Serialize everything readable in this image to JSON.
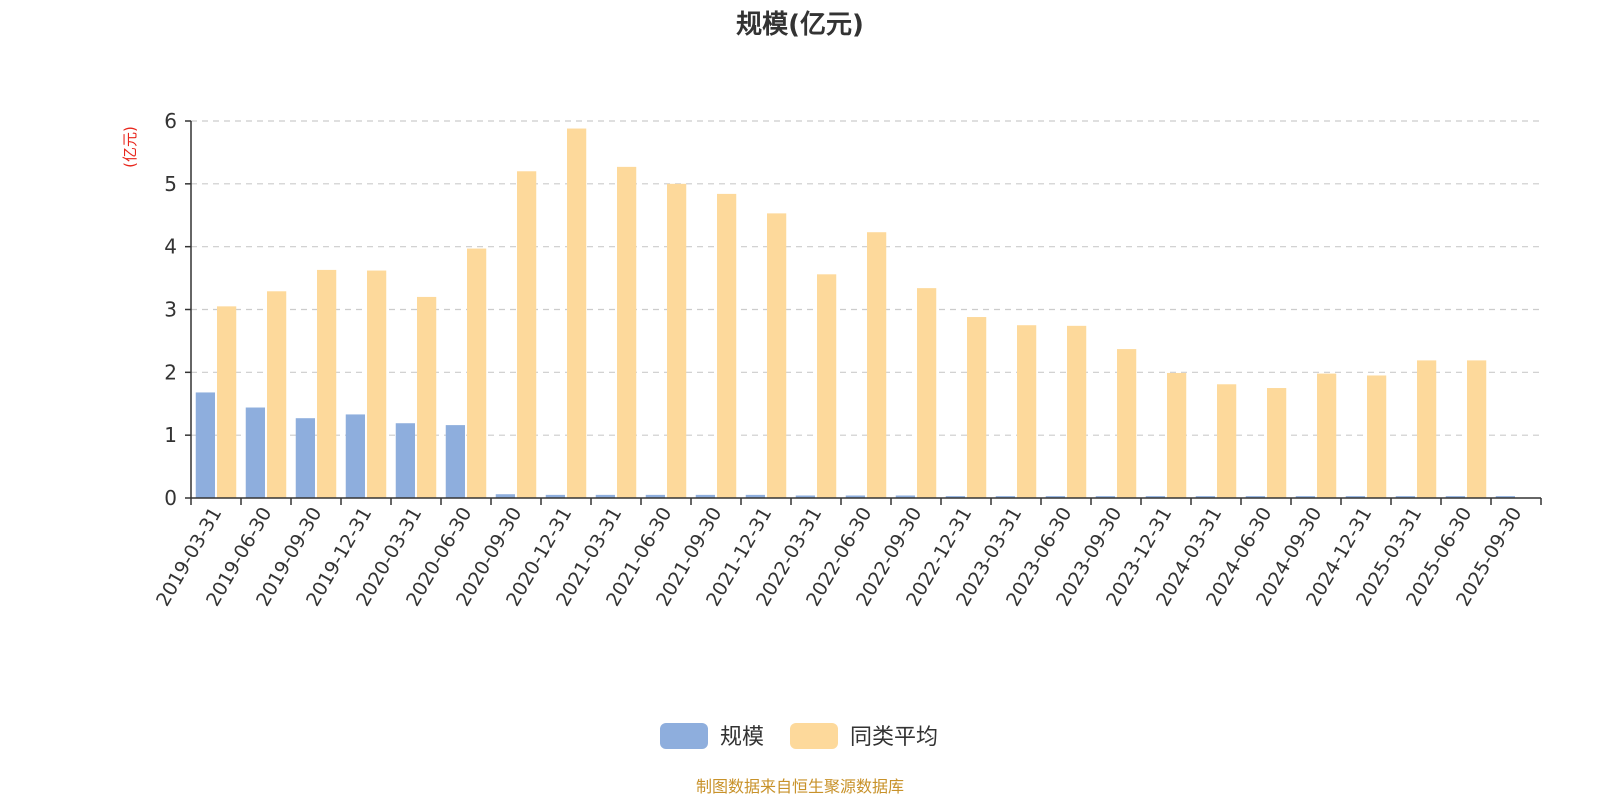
{
  "chart_data": {
    "type": "bar",
    "title": "规模(亿元)",
    "ylabel": "(亿元)",
    "xlabel": "",
    "ylim": [
      0,
      6
    ],
    "yticks": [
      0,
      1,
      2,
      3,
      4,
      5,
      6
    ],
    "grid": true,
    "legend_position": "bottom-center",
    "categories": [
      "2019-03-31",
      "2019-06-30",
      "2019-09-30",
      "2019-12-31",
      "2020-03-31",
      "2020-06-30",
      "2020-09-30",
      "2020-12-31",
      "2021-03-31",
      "2021-06-30",
      "2021-09-30",
      "2021-12-31",
      "2022-03-31",
      "2022-06-30",
      "2022-09-30",
      "2022-12-31",
      "2023-03-31",
      "2023-06-30",
      "2023-09-30",
      "2023-12-31",
      "2024-03-31",
      "2024-06-30",
      "2024-09-30",
      "2024-12-31",
      "2025-03-31",
      "2025-06-30",
      "2025-09-30"
    ],
    "series": [
      {
        "name": "规模",
        "color": "#8eaedd",
        "values": [
          1.68,
          1.44,
          1.27,
          1.33,
          1.19,
          1.16,
          0.06,
          0.05,
          0.05,
          0.05,
          0.05,
          0.05,
          0.04,
          0.04,
          0.04,
          0.03,
          0.03,
          0.03,
          0.03,
          0.03,
          0.03,
          0.03,
          0.03,
          0.03,
          0.03,
          0.03,
          0.03
        ]
      },
      {
        "name": "同类平均",
        "color": "#fdd99b",
        "values": [
          3.05,
          3.29,
          3.63,
          3.62,
          3.2,
          3.97,
          5.2,
          5.88,
          5.27,
          5.0,
          4.84,
          4.53,
          3.56,
          4.23,
          3.34,
          2.88,
          2.75,
          2.74,
          2.37,
          1.99,
          1.81,
          1.75,
          1.98,
          1.95,
          2.19,
          2.19,
          null
        ]
      }
    ]
  },
  "source": "制图数据来自恒生聚源数据库"
}
